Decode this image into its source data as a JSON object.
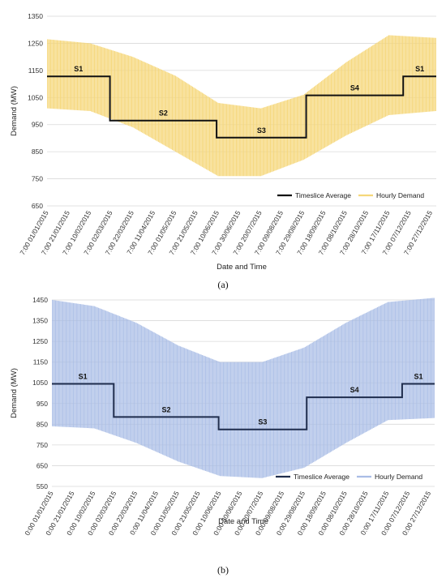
{
  "chart_data": [
    {
      "type": "line",
      "panel_label": "(a)",
      "xlabel": "Date and Time",
      "ylabel": "Demand (MW)",
      "ylim": [
        650,
        1350
      ],
      "yticks": [
        650,
        750,
        850,
        950,
        1050,
        1150,
        1250,
        1350
      ],
      "grid": true,
      "legend_position": "bottom-right",
      "xtick_labels": [
        "7:00 01/01/2015",
        "7:00 21/01/2015",
        "7:00 10/02/2015",
        "7:00 02/03/2015",
        "7:00 22/03/2015",
        "7:00 11/04/2015",
        "7:00 01/05/2015",
        "7:00 21/05/2015",
        "7:00 10/06/2015",
        "7:00 30/06/2015",
        "7:00 20/07/2015",
        "7:00 09/08/2015",
        "7:00 29/08/2015",
        "7:00 18/09/2015",
        "7:00 08/10/2015",
        "7:00 28/10/2015",
        "7:00 17/11/2015",
        "7:00 07/12/2015",
        "7:00 27/12/2015"
      ],
      "series": [
        {
          "name": "Hourly Demand",
          "color": "#f5d77a",
          "envelope_by_day": {
            "day": [
              0,
              40,
              80,
              120,
              160,
              200,
              240,
              280,
              320,
              364
            ],
            "min": [
              1010,
              1000,
              940,
              850,
              760,
              760,
              820,
              910,
              985,
              1000
            ],
            "max": [
              1265,
              1250,
              1200,
              1130,
              1030,
              1010,
              1060,
              1180,
              1280,
              1270
            ]
          }
        },
        {
          "name": "Timeslice Average",
          "color": "#111111",
          "steps": [
            {
              "label": "S1",
              "start_day": 0,
              "end_day": 59,
              "value": 1128
            },
            {
              "label": "S2",
              "start_day": 59,
              "end_day": 159,
              "value": 965
            },
            {
              "label": "S3",
              "start_day": 159,
              "end_day": 243,
              "value": 902
            },
            {
              "label": "S4",
              "start_day": 243,
              "end_day": 334,
              "value": 1058
            },
            {
              "label": "S1",
              "start_day": 334,
              "end_day": 365,
              "value": 1128
            }
          ]
        }
      ]
    },
    {
      "type": "line",
      "panel_label": "(b)",
      "xlabel": "Date and Time",
      "ylabel": "Demand (MW)",
      "ylim": [
        550,
        1450
      ],
      "yticks": [
        550,
        650,
        750,
        850,
        950,
        1050,
        1150,
        1250,
        1350,
        1450
      ],
      "grid": true,
      "legend_position": "bottom-right",
      "xtick_labels": [
        "0:00 01/01/2015",
        "0:00 21/01/2015",
        "0:00 10/02/2015",
        "0:00 02/03/2015",
        "0:00 22/03/2015",
        "0:00 11/04/2015",
        "0:00 01/05/2015",
        "0:00 21/05/2015",
        "0:00 10/06/2015",
        "0:00 30/06/2015",
        "0:00 20/07/2015",
        "0:00 09/08/2015",
        "0:00 29/08/2015",
        "0:00 18/09/2015",
        "0:00 08/10/2015",
        "0:00 28/10/2015",
        "0:00 17/11/2015",
        "0:00 07/12/2015",
        "0:00 27/12/2015"
      ],
      "series": [
        {
          "name": "Hourly Demand",
          "color": "#a9bde6",
          "envelope_by_day": {
            "day": [
              0,
              40,
              80,
              120,
              160,
              200,
              240,
              280,
              320,
              364
            ],
            "min": [
              840,
              830,
              760,
              670,
              600,
              590,
              640,
              760,
              870,
              880
            ],
            "max": [
              1450,
              1420,
              1340,
              1230,
              1150,
              1150,
              1220,
              1340,
              1440,
              1460
            ]
          }
        },
        {
          "name": "Timeslice Average",
          "color": "#1f2d4d",
          "steps": [
            {
              "label": "S1",
              "start_day": 0,
              "end_day": 59,
              "value": 1045
            },
            {
              "label": "S2",
              "start_day": 59,
              "end_day": 159,
              "value": 885
            },
            {
              "label": "S3",
              "start_day": 159,
              "end_day": 243,
              "value": 825
            },
            {
              "label": "S4",
              "start_day": 243,
              "end_day": 334,
              "value": 980
            },
            {
              "label": "S1",
              "start_day": 334,
              "end_day": 365,
              "value": 1045
            }
          ]
        }
      ]
    }
  ]
}
